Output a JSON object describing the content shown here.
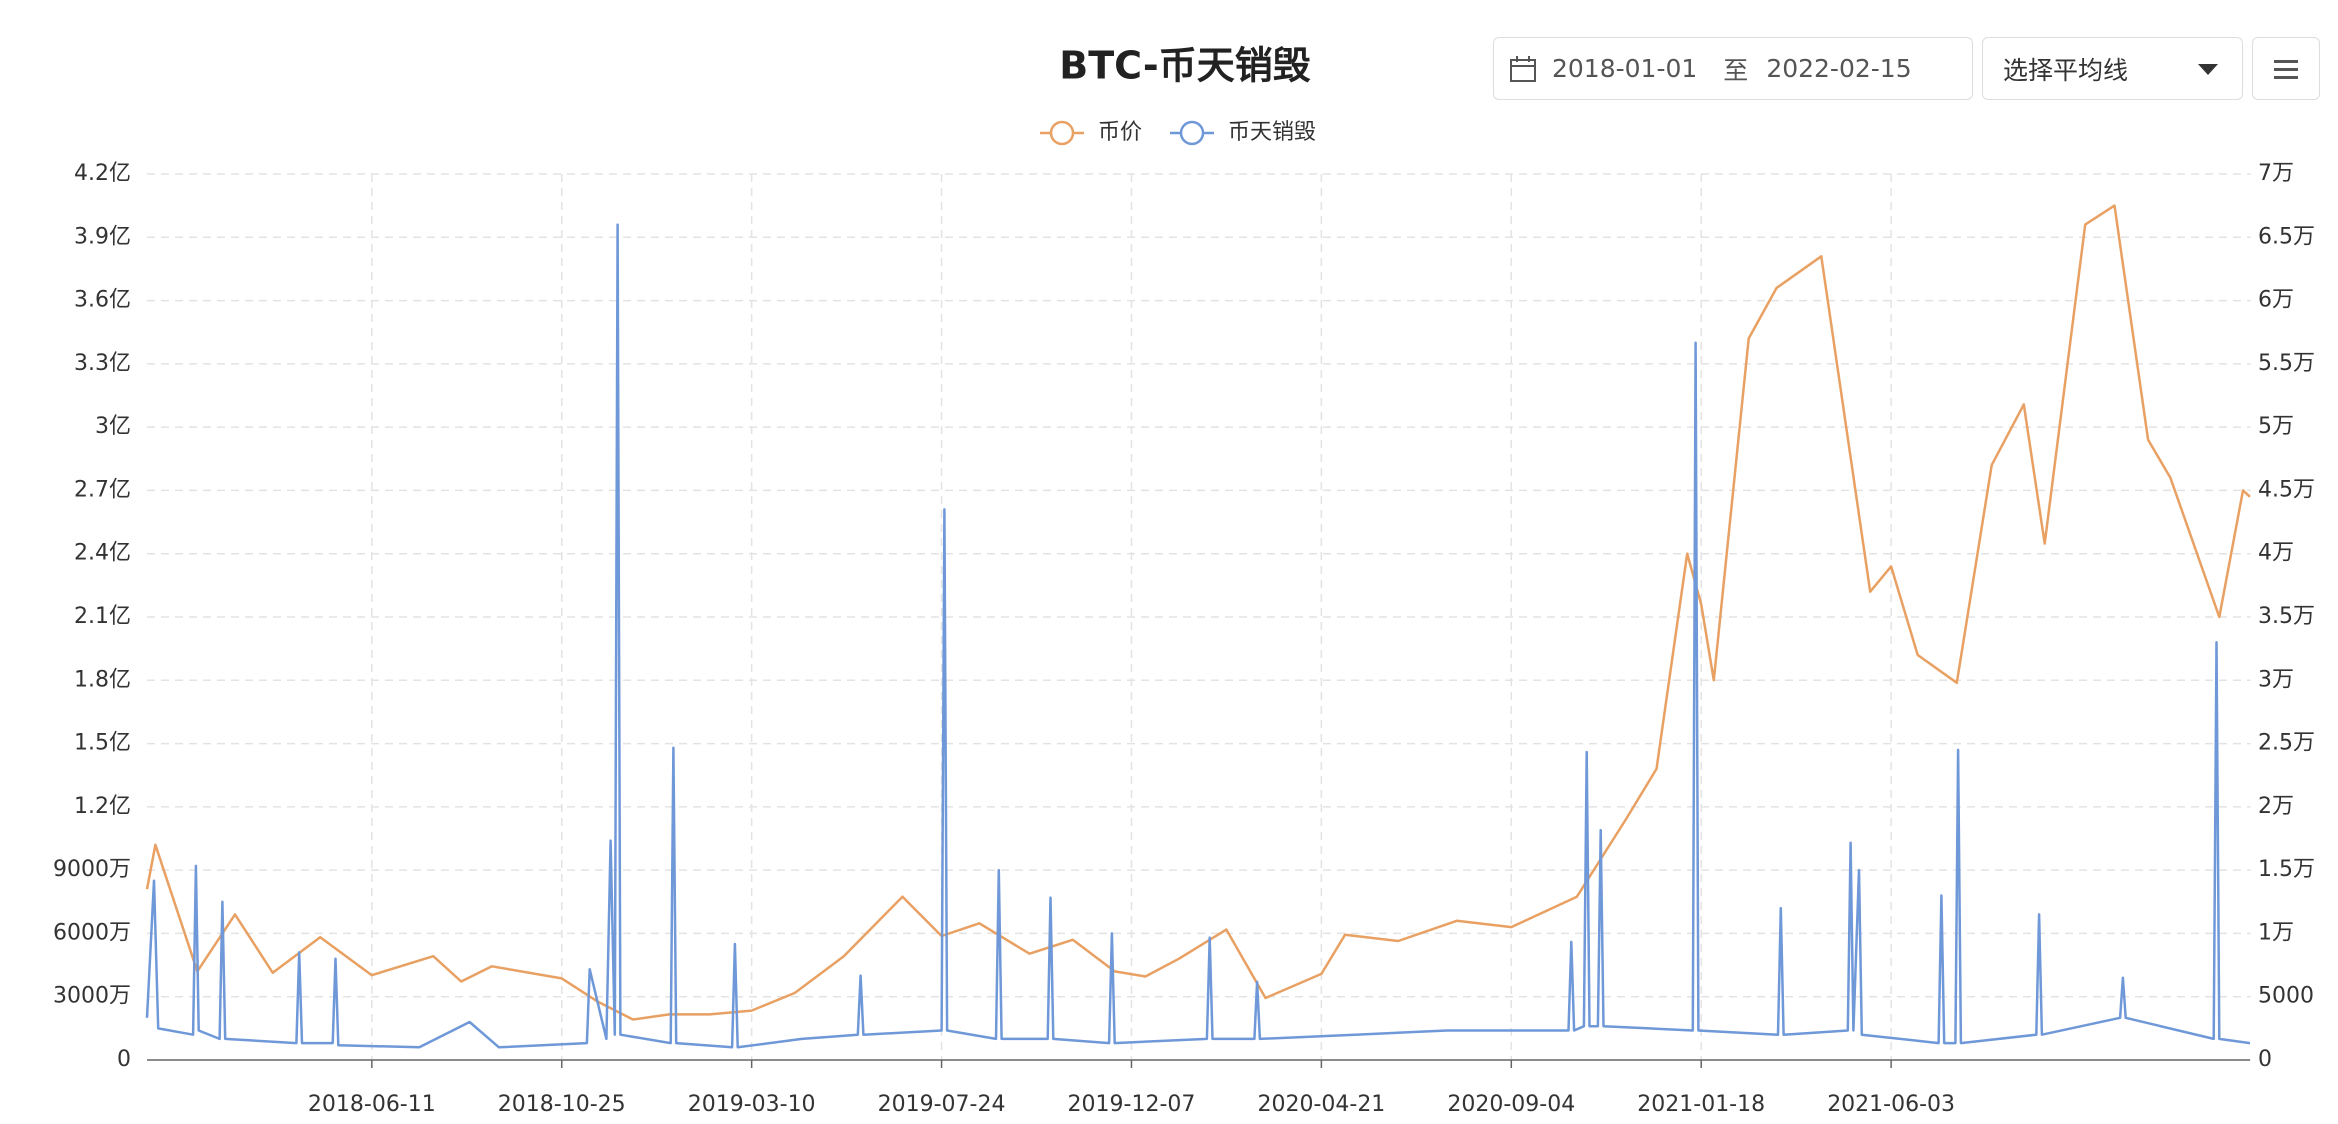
{
  "controls": {
    "date_start": "2018-01-01",
    "date_sep": "至",
    "date_end": "2022-02-15",
    "ma_select": "选择平均线"
  },
  "chart_data": {
    "type": "line",
    "title": "BTC-币天销毁",
    "xlim": [
      "2018-01-01",
      "2022-02-15"
    ],
    "xticks": [
      "2018-06-11",
      "2018-10-25",
      "2019-03-10",
      "2019-07-24",
      "2019-12-07",
      "2020-04-21",
      "2020-09-04",
      "2021-01-18",
      "2021-06-03"
    ],
    "ylim": [
      0,
      420000000
    ],
    "yticks": [
      0,
      {
        "value": 30000000,
        "label": "3000万"
      },
      {
        "value": 60000000,
        "label": "6000万"
      },
      {
        "value": 90000000,
        "label": "9000万"
      },
      {
        "value": 120000000,
        "label": "1.2亿"
      },
      {
        "value": 150000000,
        "label": "1.5亿"
      },
      {
        "value": 180000000,
        "label": "1.8亿"
      },
      {
        "value": 210000000,
        "label": "2.1亿"
      },
      {
        "value": 240000000,
        "label": "2.4亿"
      },
      {
        "value": 270000000,
        "label": "2.7亿"
      },
      {
        "value": 300000000,
        "label": "3亿"
      },
      {
        "value": 330000000,
        "label": "3.3亿"
      },
      {
        "value": 360000000,
        "label": "3.6亿"
      },
      {
        "value": 390000000,
        "label": "3.9亿"
      },
      {
        "value": 420000000,
        "label": "4.2亿"
      }
    ],
    "y2lim": [
      0,
      70000
    ],
    "y2ticks": [
      0,
      5000,
      {
        "value": 10000,
        "label": "1万"
      },
      {
        "value": 15000,
        "label": "1.5万"
      },
      {
        "value": 20000,
        "label": "2万"
      },
      {
        "value": 25000,
        "label": "2.5万"
      },
      {
        "value": 30000,
        "label": "3万"
      },
      {
        "value": 35000,
        "label": "3.5万"
      },
      {
        "value": 40000,
        "label": "4万"
      },
      {
        "value": 45000,
        "label": "4.5万"
      },
      {
        "value": 50000,
        "label": "5万"
      },
      {
        "value": 55000,
        "label": "5.5万"
      },
      {
        "value": 60000,
        "label": "6万"
      },
      {
        "value": 65000,
        "label": "6.5万"
      },
      {
        "value": 70000,
        "label": "7万"
      }
    ],
    "grid": true,
    "series": [
      {
        "name": "币价",
        "color": "#e8a063",
        "axis": "y2",
        "x": [
          "2018-01-01",
          "2018-01-07",
          "2018-02-06",
          "2018-03-05",
          "2018-04-01",
          "2018-05-05",
          "2018-06-11",
          "2018-07-25",
          "2018-08-14",
          "2018-09-05",
          "2018-10-25",
          "2018-11-20",
          "2018-12-15",
          "2019-01-10",
          "2019-02-08",
          "2019-03-10",
          "2019-04-10",
          "2019-05-15",
          "2019-06-26",
          "2019-07-24",
          "2019-08-20",
          "2019-09-25",
          "2019-10-26",
          "2019-11-25",
          "2019-12-17",
          "2020-01-10",
          "2020-02-13",
          "2020-03-12",
          "2020-04-21",
          "2020-05-08",
          "2020-06-15",
          "2020-07-27",
          "2020-09-04",
          "2020-10-21",
          "2020-11-25",
          "2020-12-17",
          "2021-01-08",
          "2021-01-18",
          "2021-01-27",
          "2021-02-21",
          "2021-03-13",
          "2021-04-14",
          "2021-05-19",
          "2021-06-03",
          "2021-06-22",
          "2021-07-20",
          "2021-08-14",
          "2021-09-06",
          "2021-09-21",
          "2021-10-20",
          "2021-11-10",
          "2021-12-04",
          "2021-12-20",
          "2022-01-24",
          "2022-02-10",
          "2022-02-15"
        ],
        "values": [
          13500,
          17000,
          7000,
          11500,
          6900,
          9700,
          6700,
          8200,
          6200,
          7400,
          6450,
          4600,
          3200,
          3600,
          3600,
          3900,
          5300,
          8200,
          12900,
          9800,
          10800,
          8400,
          9500,
          7000,
          6600,
          8000,
          10300,
          4900,
          6800,
          9900,
          9400,
          11000,
          10500,
          12900,
          19000,
          23000,
          40000,
          36000,
          30000,
          57000,
          61000,
          63500,
          37000,
          39000,
          32000,
          29800,
          47000,
          51800,
          40800,
          66000,
          67500,
          49000,
          46000,
          35000,
          45000,
          44500
        ]
      },
      {
        "name": "币天销毁",
        "color": "#6f98d8",
        "x": [
          "2018-01-01",
          "2018-01-06",
          "2018-01-09",
          "2018-02-03",
          "2018-02-05",
          "2018-02-07",
          "2018-02-22",
          "2018-02-24",
          "2018-02-26",
          "2018-04-18",
          "2018-04-20",
          "2018-04-22",
          "2018-05-14",
          "2018-05-16",
          "2018-05-18",
          "2018-07-15",
          "2018-08-20",
          "2018-09-10",
          "2018-11-12",
          "2018-11-14",
          "2018-11-26",
          "2018-11-29",
          "2018-12-02",
          "2018-12-04",
          "2018-12-06",
          "2019-01-11",
          "2019-01-13",
          "2019-01-15",
          "2019-02-24",
          "2019-02-26",
          "2019-02-28",
          "2019-04-15",
          "2019-05-25",
          "2019-05-27",
          "2019-05-29",
          "2019-07-24",
          "2019-07-26",
          "2019-07-28",
          "2019-09-01",
          "2019-09-03",
          "2019-09-05",
          "2019-10-08",
          "2019-10-10",
          "2019-10-12",
          "2019-11-21",
          "2019-11-23",
          "2019-11-25",
          "2020-01-30",
          "2020-02-01",
          "2020-02-03",
          "2020-03-04",
          "2020-03-06",
          "2020-03-08",
          "2020-05-15",
          "2020-07-20",
          "2020-10-15",
          "2020-10-17",
          "2020-10-19",
          "2020-10-26",
          "2020-10-28",
          "2020-10-30",
          "2020-11-05",
          "2020-11-07",
          "2020-11-09",
          "2021-01-12",
          "2021-01-14",
          "2021-01-16",
          "2021-03-14",
          "2021-03-16",
          "2021-03-18",
          "2021-05-03",
          "2021-05-05",
          "2021-05-07",
          "2021-05-11",
          "2021-05-13",
          "2021-07-07",
          "2021-07-09",
          "2021-07-11",
          "2021-07-19",
          "2021-07-21",
          "2021-07-23",
          "2021-09-15",
          "2021-09-17",
          "2021-09-19",
          "2021-11-14",
          "2021-11-16",
          "2021-11-18",
          "2022-01-20",
          "2022-01-22",
          "2022-01-24",
          "2022-02-15"
        ],
        "values": [
          20000000,
          85000000,
          15000000,
          12000000,
          92000000,
          14000000,
          10000000,
          75000000,
          10000000,
          8000000,
          51000000,
          8000000,
          8000000,
          48000000,
          7000000,
          6000000,
          18000000,
          6000000,
          8000000,
          43000000,
          10000000,
          104000000,
          12000000,
          396000000,
          12000000,
          8000000,
          148000000,
          8000000,
          6000000,
          55000000,
          6000000,
          10000000,
          12000000,
          40000000,
          12000000,
          14000000,
          261000000,
          14000000,
          10000000,
          90000000,
          10000000,
          10000000,
          77000000,
          10000000,
          8000000,
          60000000,
          8000000,
          10000000,
          58000000,
          10000000,
          10000000,
          37000000,
          10000000,
          12000000,
          14000000,
          14000000,
          56000000,
          14000000,
          16000000,
          146000000,
          16000000,
          16000000,
          109000000,
          16000000,
          14000000,
          340000000,
          14000000,
          12000000,
          72000000,
          12000000,
          14000000,
          103000000,
          14000000,
          90000000,
          12000000,
          8000000,
          78000000,
          8000000,
          8000000,
          147000000,
          8000000,
          12000000,
          69000000,
          12000000,
          20000000,
          39000000,
          20000000,
          10000000,
          198000000,
          10000000,
          8000000
        ]
      }
    ]
  }
}
